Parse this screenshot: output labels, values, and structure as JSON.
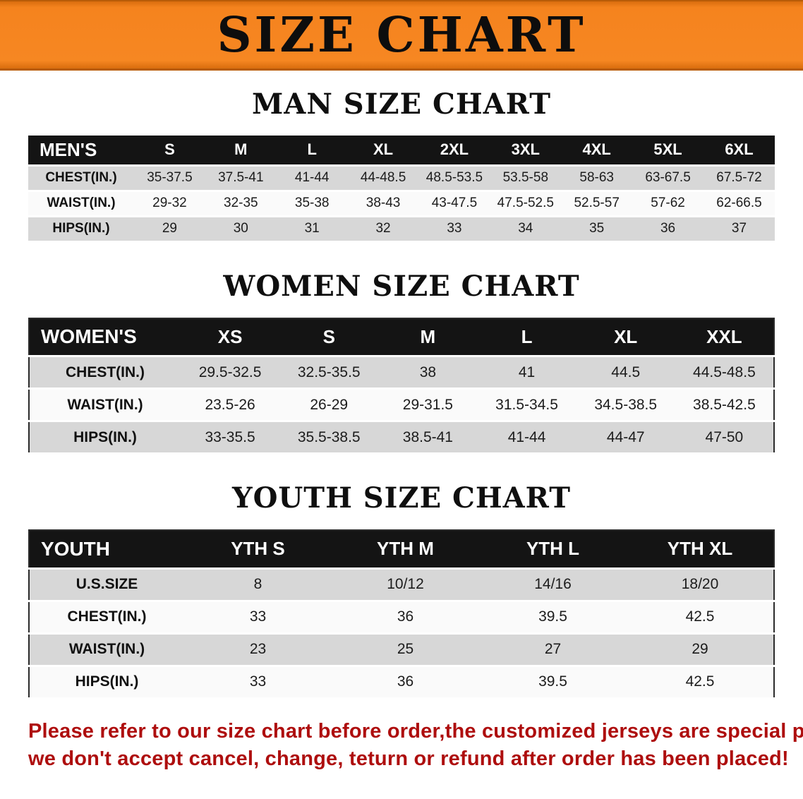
{
  "banner": {
    "title": "SIZE CHART"
  },
  "men": {
    "heading": "MAN SIZE CHART",
    "header": [
      "MEN'S",
      "S",
      "M",
      "L",
      "XL",
      "2XL",
      "3XL",
      "4XL",
      "5XL",
      "6XL"
    ],
    "rows": [
      {
        "label": "CHEST(IN.)",
        "values": [
          "35-37.5",
          "37.5-41",
          "41-44",
          "44-48.5",
          "48.5-53.5",
          "53.5-58",
          "58-63",
          "63-67.5",
          "67.5-72"
        ]
      },
      {
        "label": "WAIST(IN.)",
        "values": [
          "29-32",
          "32-35",
          "35-38",
          "38-43",
          "43-47.5",
          "47.5-52.5",
          "52.5-57",
          "57-62",
          "62-66.5"
        ]
      },
      {
        "label": "HIPS(IN.)",
        "values": [
          "29",
          "30",
          "31",
          "32",
          "33",
          "34",
          "35",
          "36",
          "37"
        ]
      }
    ]
  },
  "women": {
    "heading": "WOMEN SIZE CHART",
    "header": [
      "WOMEN'S",
      "XS",
      "S",
      "M",
      "L",
      "XL",
      "XXL"
    ],
    "rows": [
      {
        "label": "CHEST(IN.)",
        "values": [
          "29.5-32.5",
          "32.5-35.5",
          "38",
          "41",
          "44.5",
          "44.5-48.5"
        ]
      },
      {
        "label": "WAIST(IN.)",
        "values": [
          "23.5-26",
          "26-29",
          "29-31.5",
          "31.5-34.5",
          "34.5-38.5",
          "38.5-42.5"
        ]
      },
      {
        "label": "HIPS(IN.)",
        "values": [
          "33-35.5",
          "35.5-38.5",
          "38.5-41",
          "41-44",
          "44-47",
          "47-50"
        ]
      }
    ]
  },
  "youth": {
    "heading": "YOUTH SIZE CHART",
    "header": [
      "YOUTH",
      "YTH S",
      "YTH M",
      "YTH L",
      "YTH XL"
    ],
    "rows": [
      {
        "label": "U.S.SIZE",
        "values": [
          "8",
          "10/12",
          "14/16",
          "18/20"
        ]
      },
      {
        "label": "CHEST(IN.)",
        "values": [
          "33",
          "36",
          "39.5",
          "42.5"
        ]
      },
      {
        "label": "WAIST(IN.)",
        "values": [
          "23",
          "25",
          "27",
          "29"
        ]
      },
      {
        "label": "HIPS(IN.)",
        "values": [
          "33",
          "36",
          "39.5",
          "42.5"
        ]
      }
    ]
  },
  "note": {
    "line1": "Please refer to our size chart before order,the customized jerseys are special products,",
    "line2": "we don't accept cancel, change, teturn or refund after order has been placed!"
  },
  "colors": {
    "banner_orange": "#f5831e",
    "header_black": "#141414",
    "row_gray": "#d7d7d7",
    "row_light": "#fafafa",
    "note_red": "#ae0e0e"
  }
}
